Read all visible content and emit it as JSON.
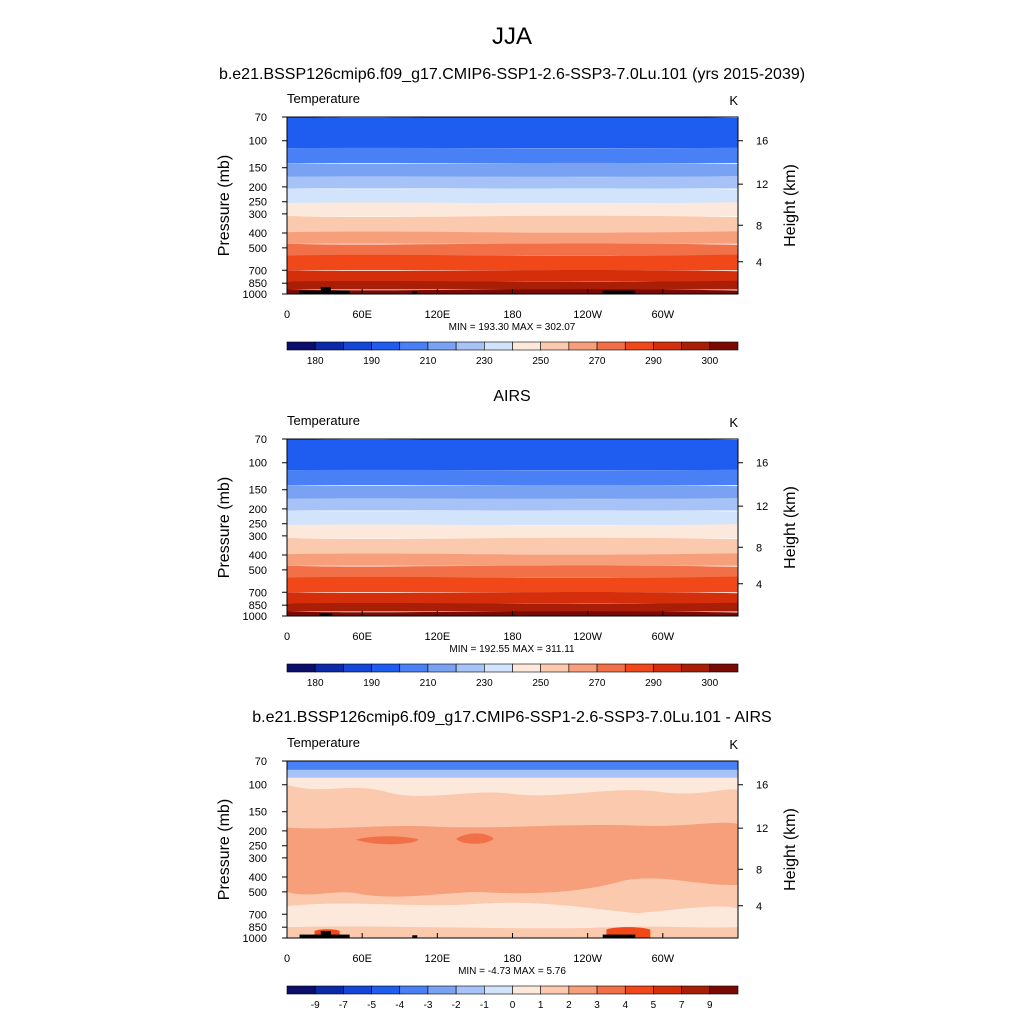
{
  "figure": {
    "season": "JJA",
    "model_title": "b.e21.BSSP126cmip6.f09_g17.CMIP6-SSP1-2.6-SSP3-7.0Lu.101 (yrs 2015-2039)",
    "obs_title": "AIRS",
    "diff_title": "b.e21.BSSP126cmip6.f09_g17.CMIP6-SSP1-2.6-SSP3-7.0Lu.101 - AIRS"
  },
  "colors": {
    "abs_scale": [
      "#0b0e6b",
      "#0c2aa8",
      "#1446d8",
      "#1f5cf0",
      "#4a80f5",
      "#7aa2f3",
      "#a6c2f7",
      "#d2e4fb",
      "#fce9dc",
      "#fbc9ad",
      "#f79e7b",
      "#f27048",
      "#f04818",
      "#d42e0a",
      "#a81e06",
      "#7a0a03"
    ],
    "diff_scale": [
      "#0b0e6b",
      "#0c2aa8",
      "#1446d8",
      "#1f5cf0",
      "#4a80f5",
      "#7aa2f3",
      "#a6c2f7",
      "#d2e4fb",
      "#fce9dc",
      "#fbc9ad",
      "#f79e7b",
      "#f27048",
      "#f04818",
      "#d42e0a",
      "#a81e06",
      "#7a0a03"
    ],
    "terrain": "#000000"
  },
  "chart_data": [
    {
      "type": "heatmap",
      "panel": "model",
      "title": "b.e21.BSSP126cmip6.f09_g17.CMIP6-SSP1-2.6-SSP3-7.0Lu.101 (yrs 2015-2039)",
      "left_label": "Temperature",
      "right_label": "K",
      "ylabel": "Pressure (mb)",
      "y2label": "Height (km)",
      "x_ticks": [
        "0",
        "60E",
        "120E",
        "180",
        "120W",
        "60W"
      ],
      "y_ticks": [
        "70",
        "100",
        "150",
        "200",
        "250",
        "300",
        "400",
        "500",
        "700",
        "850",
        "1000"
      ],
      "y2_ticks": [
        "16",
        "12",
        "8",
        "4"
      ],
      "minmax_text": "MIN = 193.30  MAX = 302.07",
      "min": 193.3,
      "max": 302.07,
      "colorbar_labels": [
        "180",
        "190",
        "210",
        "230",
        "250",
        "270",
        "290",
        "300"
      ],
      "profile": [
        {
          "p": 70,
          "t": 196
        },
        {
          "p": 100,
          "t": 200
        },
        {
          "p": 150,
          "t": 207
        },
        {
          "p": 200,
          "t": 215
        },
        {
          "p": 250,
          "t": 226
        },
        {
          "p": 300,
          "t": 237
        },
        {
          "p": 400,
          "t": 252
        },
        {
          "p": 500,
          "t": 263
        },
        {
          "p": 700,
          "t": 279
        },
        {
          "p": 850,
          "t": 289
        },
        {
          "p": 1000,
          "t": 298
        }
      ]
    },
    {
      "type": "heatmap",
      "panel": "obs",
      "title": "AIRS",
      "left_label": "Temperature",
      "right_label": "K",
      "ylabel": "Pressure (mb)",
      "y2label": "Height (km)",
      "x_ticks": [
        "0",
        "60E",
        "120E",
        "180",
        "120W",
        "60W"
      ],
      "y_ticks": [
        "70",
        "100",
        "150",
        "200",
        "250",
        "300",
        "400",
        "500",
        "700",
        "850",
        "1000"
      ],
      "y2_ticks": [
        "16",
        "12",
        "8",
        "4"
      ],
      "minmax_text": "MIN = 192.55  MAX = 311.11",
      "min": 192.55,
      "max": 311.11,
      "colorbar_labels": [
        "180",
        "190",
        "210",
        "230",
        "250",
        "270",
        "290",
        "300"
      ]
    },
    {
      "type": "heatmap",
      "panel": "difference",
      "title": "b.e21.BSSP126cmip6.f09_g17.CMIP6-SSP1-2.6-SSP3-7.0Lu.101 - AIRS",
      "left_label": "Temperature",
      "right_label": "K",
      "ylabel": "Pressure (mb)",
      "y2label": "Height (km)",
      "x_ticks": [
        "0",
        "60E",
        "120E",
        "180",
        "120W",
        "60W"
      ],
      "y_ticks": [
        "70",
        "100",
        "150",
        "200",
        "250",
        "300",
        "400",
        "500",
        "700",
        "850",
        "1000"
      ],
      "y2_ticks": [
        "16",
        "12",
        "8",
        "4"
      ],
      "minmax_text": "MIN =  -4.73  MAX =   5.76",
      "min": -4.73,
      "max": 5.76,
      "colorbar_labels": [
        "-9",
        "-7",
        "-5",
        "-4",
        "-3",
        "-2",
        "-1",
        "0",
        "1",
        "2",
        "3",
        "4",
        "5",
        "7",
        "9"
      ]
    }
  ]
}
